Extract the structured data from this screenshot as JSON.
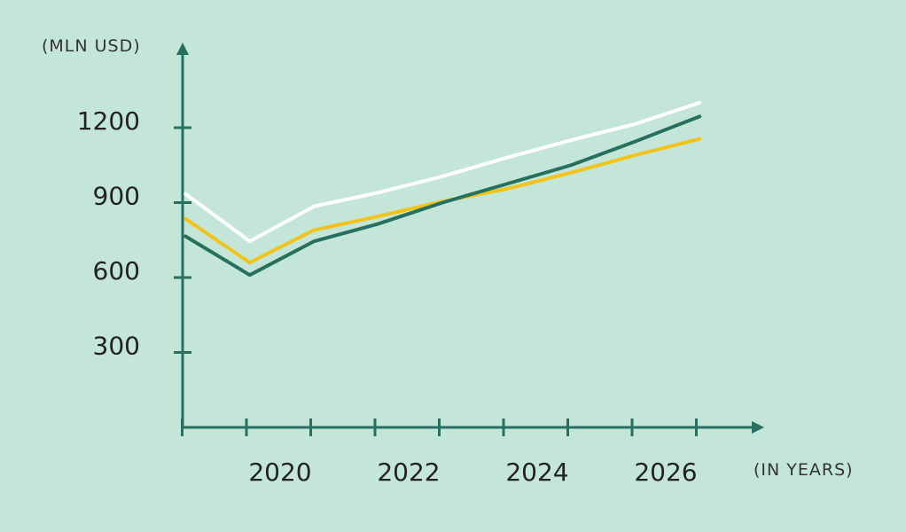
{
  "colors": {
    "background": "#c3e6d9",
    "axis": "#27705f"
  },
  "chart_data": {
    "type": "line",
    "title": "",
    "ylabel": "(MLN USD)",
    "xlabel": "(IN YEARS)",
    "x": [
      2019,
      2020,
      2021,
      2022,
      2023,
      2024,
      2025,
      2026,
      2027
    ],
    "x_tick_labels": [
      "2020",
      "2022",
      "2024",
      "2026"
    ],
    "y_tick_labels": [
      "300",
      "600",
      "900",
      "1200"
    ],
    "ylim": [
      0,
      1450
    ],
    "grid": false,
    "series": [
      {
        "color": "#ffffff",
        "x": [
          2018.5,
          2019.5,
          2020.5,
          2021.5,
          2022.5,
          2023.5,
          2024.5,
          2025.5,
          2026.5
        ],
        "values": [
          935,
          745,
          885,
          940,
          1005,
          1080,
          1150,
          1215,
          1300
        ]
      },
      {
        "color": "#f2c319",
        "x": [
          2018.5,
          2019.5,
          2020.5,
          2021.5,
          2022.5,
          2023.5,
          2024.5,
          2025.5,
          2026.5
        ],
        "values": [
          835,
          660,
          790,
          845,
          905,
          955,
          1020,
          1090,
          1155
        ]
      },
      {
        "color": "#27705f",
        "x": [
          2018.5,
          2019.5,
          2020.5,
          2021.5,
          2022.5,
          2023.5,
          2024.5,
          2025.5,
          2026.5
        ],
        "values": [
          765,
          610,
          745,
          815,
          900,
          975,
          1050,
          1145,
          1245
        ]
      }
    ]
  }
}
